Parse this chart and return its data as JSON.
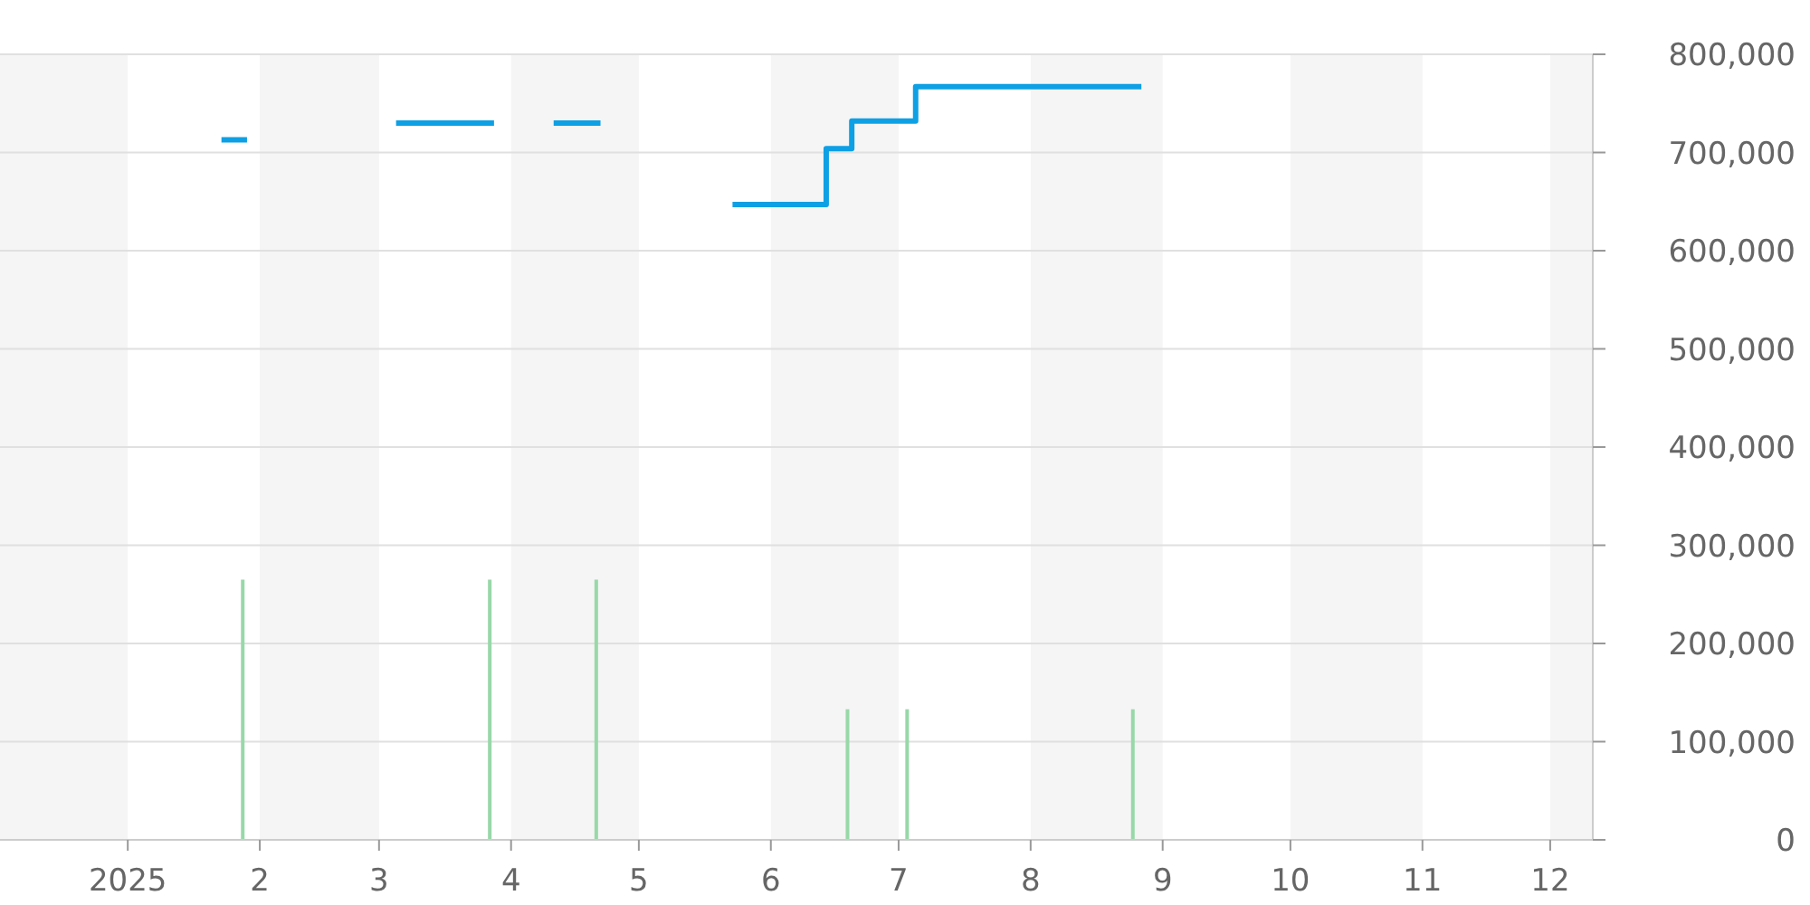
{
  "chart_data": {
    "type": "step",
    "xlim": [
      "2024-12-02",
      "2025-12-11"
    ],
    "ylim": [
      0,
      800000
    ],
    "xticks": [
      {
        "value": "2025-01-01",
        "label": "2025"
      },
      {
        "value": "2025-02-01",
        "label": "2"
      },
      {
        "value": "2025-03-01",
        "label": "3"
      },
      {
        "value": "2025-04-01",
        "label": "4"
      },
      {
        "value": "2025-05-01",
        "label": "5"
      },
      {
        "value": "2025-06-01",
        "label": "6"
      },
      {
        "value": "2025-07-01",
        "label": "7"
      },
      {
        "value": "2025-08-01",
        "label": "8"
      },
      {
        "value": "2025-09-01",
        "label": "9"
      },
      {
        "value": "2025-10-01",
        "label": "10"
      },
      {
        "value": "2025-11-01",
        "label": "11"
      },
      {
        "value": "2025-12-01",
        "label": "12"
      }
    ],
    "yticks": [
      0,
      {
        "value": 100000,
        "label": "100,000"
      },
      {
        "value": 200000,
        "label": "200,000"
      },
      {
        "value": 300000,
        "label": "300,000"
      },
      {
        "value": 400000,
        "label": "400,000"
      },
      {
        "value": 500000,
        "label": "500,000"
      },
      {
        "value": 600000,
        "label": "600,000"
      },
      {
        "value": 700000,
        "label": "700,000"
      },
      {
        "value": 800000,
        "label": "800,000"
      }
    ],
    "grid": "y",
    "bands": [
      {
        "axis": "x",
        "from": "2024-12-02",
        "to": "2025-01-01",
        "color": "#f5f5f5"
      },
      {
        "axis": "x",
        "from": "2025-02-01",
        "to": "2025-03-01",
        "color": "#f5f5f5"
      },
      {
        "axis": "x",
        "from": "2025-04-01",
        "to": "2025-05-01",
        "color": "#f5f5f5"
      },
      {
        "axis": "x",
        "from": "2025-06-01",
        "to": "2025-07-01",
        "color": "#f5f5f5"
      },
      {
        "axis": "x",
        "from": "2025-08-01",
        "to": "2025-09-01",
        "color": "#f5f5f5"
      },
      {
        "axis": "x",
        "from": "2025-10-01",
        "to": "2025-11-01",
        "color": "#f5f5f5"
      },
      {
        "axis": "x",
        "from": "2025-12-01",
        "to": "2025-12-11",
        "color": "#f5f5f5"
      }
    ],
    "series": [
      {
        "type": "bar",
        "color": "#98d8a8",
        "x": [
          "2025-01-28",
          "2025-03-27",
          "2025-04-21",
          "2025-06-19",
          "2025-07-03",
          "2025-08-25"
        ],
        "values": [
          265000,
          265000,
          265000,
          133000,
          133000,
          133000
        ]
      },
      {
        "color": "#0ea0e4",
        "x": [
          "2025-01-23",
          "2025-01-29",
          "2025-02-15",
          "2025-03-05",
          "2025-03-28",
          "2025-04-01",
          "2025-04-11",
          "2025-04-22",
          "2025-05-01",
          "2025-05-23",
          "2025-06-14",
          "2025-06-20",
          "2025-07-05",
          "2025-08-27"
        ],
        "values": [
          713000,
          713000,
          null,
          730000,
          730000,
          null,
          730000,
          730000,
          null,
          647000,
          704000,
          732000,
          767000,
          767000
        ]
      }
    ]
  }
}
